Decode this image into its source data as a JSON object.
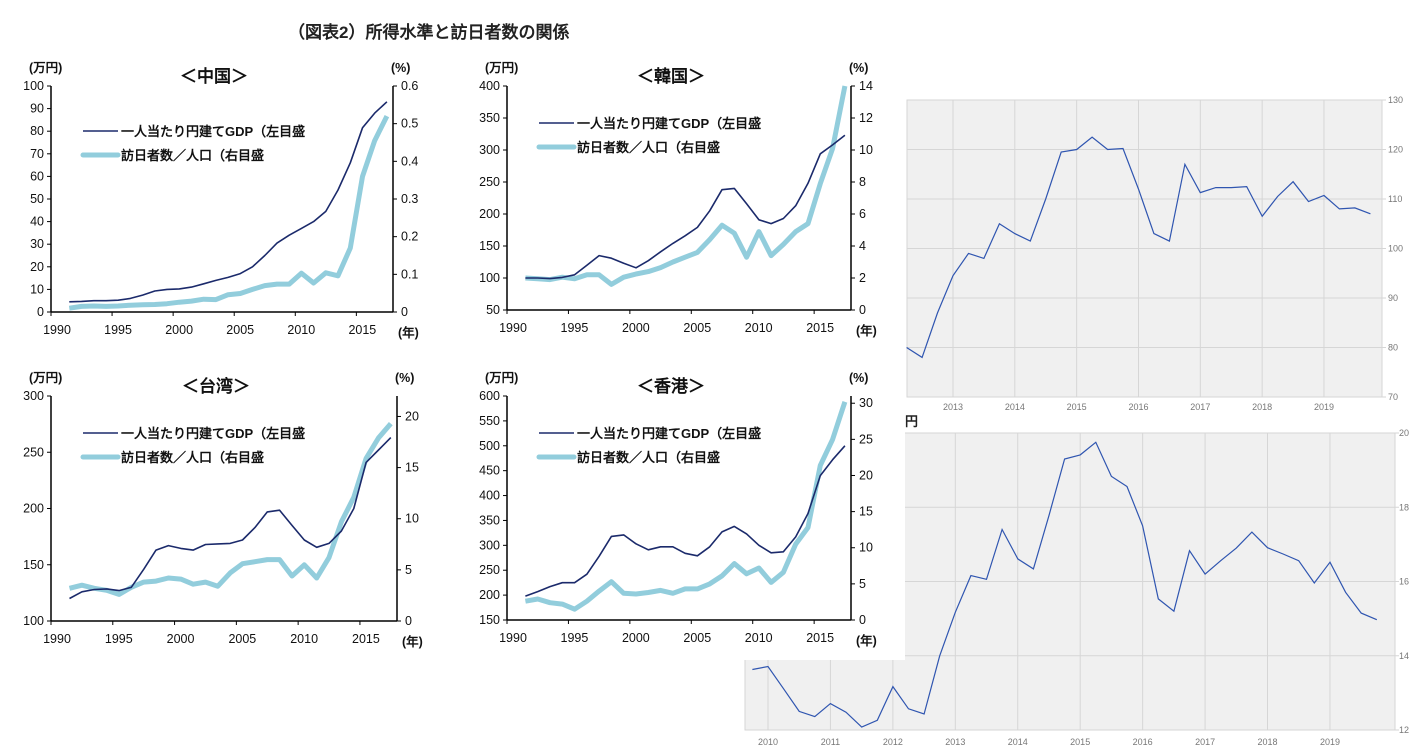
{
  "title": "（図表2）所得水準と訪日者数の関係",
  "colors": {
    "gdp": "#1b2a6b",
    "visitors": "#92cddc",
    "bg_line": "#2f55b0",
    "bg_fill": "#f0f0f0",
    "bg_grid": "#d6d6d6"
  },
  "chart_data": [
    {
      "type": "line",
      "title": "＜中国＞",
      "left_unit": "(万円)",
      "right_unit": "(%)",
      "x_unit": "(年)",
      "x": [
        1991,
        1992,
        1993,
        1994,
        1995,
        1996,
        1997,
        1998,
        1999,
        2000,
        2001,
        2002,
        2003,
        2004,
        2005,
        2006,
        2007,
        2008,
        2009,
        2010,
        2011,
        2012,
        2013,
        2014,
        2015,
        2016,
        2017
      ],
      "x_ticks": [
        1990,
        1995,
        2000,
        2005,
        2010,
        2015
      ],
      "left_ylim": [
        0,
        100
      ],
      "left_ticks": [
        0,
        10,
        20,
        30,
        40,
        50,
        60,
        70,
        80,
        90,
        100
      ],
      "right_ylim": [
        0,
        0.6
      ],
      "right_ticks": [
        0,
        0.1,
        0.2,
        0.3,
        0.4,
        0.5,
        0.6
      ],
      "series": [
        {
          "name": "一人当たり円建てGDP（左目盛",
          "axis": "left",
          "values": [
            4.5,
            4.7,
            5,
            5,
            5.2,
            6,
            7.5,
            9.3,
            10,
            10.2,
            11,
            12.5,
            14,
            15.3,
            17,
            20,
            25,
            30.5,
            34,
            37,
            40,
            44.5,
            54,
            66,
            81.5,
            88,
            93
          ]
        },
        {
          "name": "訪日者数／人口（右目盛",
          "axis": "right",
          "values": [
            0.01,
            0.015,
            0.016,
            0.015,
            0.016,
            0.018,
            0.019,
            0.02,
            0.022,
            0.026,
            0.029,
            0.034,
            0.033,
            0.046,
            0.049,
            0.06,
            0.07,
            0.074,
            0.074,
            0.103,
            0.077,
            0.104,
            0.096,
            0.17,
            0.36,
            0.455,
            0.52
          ]
        }
      ]
    },
    {
      "type": "line",
      "title": "＜韓国＞",
      "left_unit": "(万円)",
      "right_unit": "(%)",
      "x_unit": "(年)",
      "x": [
        1991,
        1992,
        1993,
        1994,
        1995,
        1996,
        1997,
        1998,
        1999,
        2000,
        2001,
        2002,
        2003,
        2004,
        2005,
        2006,
        2007,
        2008,
        2009,
        2010,
        2011,
        2012,
        2013,
        2014,
        2015,
        2016,
        2017
      ],
      "x_ticks": [
        1990,
        1995,
        2000,
        2005,
        2010,
        2015
      ],
      "left_ylim": [
        50,
        400
      ],
      "left_ticks": [
        50,
        100,
        150,
        200,
        250,
        300,
        350,
        400
      ],
      "right_ylim": [
        0,
        14
      ],
      "right_ticks": [
        0,
        2,
        4,
        6,
        8,
        10,
        12,
        14
      ],
      "series": [
        {
          "name": "一人当たり円建てGDP（左目盛",
          "axis": "left",
          "values": [
            100,
            100,
            99,
            101,
            105,
            120,
            135,
            131,
            123,
            116,
            127,
            141,
            154,
            166,
            179,
            205,
            238,
            240,
            216,
            191,
            185,
            193,
            213,
            248,
            294,
            308,
            323
          ]
        },
        {
          "name": "訪日者数／人口（右目盛",
          "axis": "right",
          "values": [
            2.0,
            1.95,
            1.9,
            2.05,
            1.95,
            2.2,
            2.2,
            1.6,
            2.05,
            2.25,
            2.4,
            2.65,
            3.0,
            3.3,
            3.6,
            4.4,
            5.3,
            4.8,
            3.3,
            4.9,
            3.4,
            4.1,
            4.9,
            5.4,
            7.9,
            10.1,
            14.0
          ]
        }
      ]
    },
    {
      "type": "line",
      "title": "＜台湾＞",
      "left_unit": "(万円)",
      "right_unit": "(%)",
      "x_unit": "(年)",
      "x": [
        1991,
        1992,
        1993,
        1994,
        1995,
        1996,
        1997,
        1998,
        1999,
        2000,
        2001,
        2002,
        2003,
        2004,
        2005,
        2006,
        2007,
        2008,
        2009,
        2010,
        2011,
        2012,
        2013,
        2014,
        2015,
        2016,
        2017
      ],
      "x_ticks": [
        1990,
        1995,
        2000,
        2005,
        2010,
        2015
      ],
      "left_ylim": [
        100,
        300
      ],
      "left_ticks": [
        100,
        150,
        200,
        250,
        300
      ],
      "right_ylim": [
        0,
        22
      ],
      "right_ticks": [
        0,
        5,
        10,
        15,
        20
      ],
      "series": [
        {
          "name": "一人当たり円建てGDP（左目盛",
          "axis": "left",
          "values": [
            120,
            126,
            128,
            128.5,
            127,
            130,
            146,
            163,
            167,
            164.5,
            163,
            168,
            168.5,
            169,
            172,
            183,
            197,
            198.5,
            185,
            172,
            165.5,
            169,
            180,
            200,
            241,
            252,
            263
          ]
        },
        {
          "name": "訪日者数／人口（右目盛",
          "axis": "right",
          "values": [
            3.2,
            3.5,
            3.2,
            3.0,
            2.6,
            3.3,
            3.8,
            3.9,
            4.2,
            4.1,
            3.6,
            3.8,
            3.4,
            4.7,
            5.6,
            5.8,
            6.0,
            6.0,
            4.4,
            5.5,
            4.2,
            6.2,
            9.7,
            12.1,
            15.9,
            17.9,
            19.3
          ]
        }
      ]
    },
    {
      "type": "line",
      "title": "＜香港＞",
      "left_unit": "(万円)",
      "right_unit": "(%)",
      "x_unit": "(年)",
      "x": [
        1991,
        1992,
        1993,
        1994,
        1995,
        1996,
        1997,
        1998,
        1999,
        2000,
        2001,
        2002,
        2003,
        2004,
        2005,
        2006,
        2007,
        2008,
        2009,
        2010,
        2011,
        2012,
        2013,
        2014,
        2015,
        2016,
        2017
      ],
      "x_ticks": [
        1990,
        1995,
        2000,
        2005,
        2010,
        2015
      ],
      "left_ylim": [
        150,
        600
      ],
      "left_ticks": [
        150,
        200,
        250,
        300,
        350,
        400,
        450,
        500,
        550,
        600
      ],
      "right_ylim": [
        0,
        31
      ],
      "right_ticks": [
        0,
        5,
        10,
        15,
        20,
        25,
        30
      ],
      "series": [
        {
          "name": "一人当たり円建てGDP（左目盛",
          "axis": "left",
          "values": [
            198,
            207,
            217,
            225,
            225,
            242,
            278,
            318,
            321,
            303,
            291,
            297,
            297,
            284,
            279,
            297,
            327,
            338,
            323,
            300,
            285,
            287,
            317,
            364,
            440,
            472,
            500
          ]
        },
        {
          "name": "訪日者数／人口（右目盛",
          "axis": "right",
          "values": [
            2.6,
            2.9,
            2.4,
            2.2,
            1.5,
            2.6,
            4.0,
            5.3,
            3.7,
            3.6,
            3.8,
            4.1,
            3.7,
            4.3,
            4.3,
            5.0,
            6.1,
            7.8,
            6.4,
            7.2,
            5.2,
            6.6,
            10.5,
            12.8,
            21.4,
            25.0,
            30.2
          ]
        }
      ]
    },
    {
      "type": "line",
      "name": "background-chart-top",
      "x_start": 2012.25,
      "x_step": 0.25,
      "x_ticks": [
        2013,
        2014,
        2015,
        2016,
        2017,
        2018,
        2019
      ],
      "ylim": [
        70,
        130
      ],
      "y_ticks": [
        70,
        80,
        90,
        100,
        110,
        120,
        130
      ],
      "values": [
        80,
        78,
        87,
        94.5,
        99,
        98,
        105,
        103,
        101.5,
        110,
        119.5,
        120,
        122.5,
        120,
        120.2,
        112,
        103,
        101.5,
        117,
        111.3,
        112.3,
        112.3,
        112.5,
        106.5,
        110.5,
        113.5,
        109.5,
        110.7,
        108,
        108.2,
        107
      ]
    },
    {
      "type": "line",
      "name": "background-chart-bottom",
      "unit_fragment": "円",
      "x_start": 2009.75,
      "x_step": 0.25,
      "x_ticks": [
        2010,
        2011,
        2012,
        2013,
        2014,
        2015,
        2016,
        2017,
        2018,
        2019
      ],
      "ylim": [
        12,
        20
      ],
      "y_ticks": [
        12,
        14,
        16,
        18,
        20
      ],
      "y_tick_labels": [
        "12",
        "14",
        "16",
        "18",
        "20"
      ],
      "values": [
        13.63,
        13.71,
        13.11,
        12.5,
        12.36,
        12.71,
        12.48,
        12.08,
        12.26,
        13.17,
        12.57,
        12.43,
        14.0,
        15.17,
        16.16,
        16.06,
        17.4,
        16.61,
        16.34,
        17.78,
        19.3,
        19.41,
        19.75,
        18.83,
        18.56,
        17.5,
        15.53,
        15.2,
        16.83,
        16.2,
        16.56,
        16.9,
        17.33,
        16.91,
        16.74,
        16.56,
        15.96,
        16.52,
        15.71,
        15.15,
        14.97
      ]
    }
  ]
}
